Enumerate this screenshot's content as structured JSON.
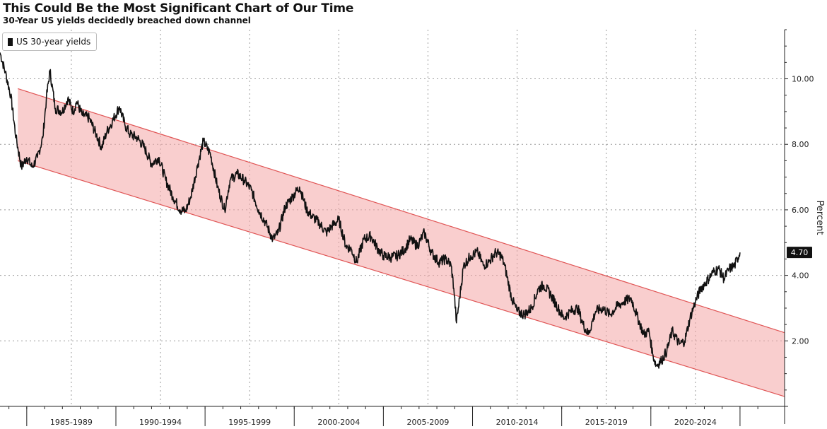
{
  "chart_data": {
    "type": "line",
    "title": "This Could Be the Most Significant Chart of Our Time",
    "subtitle": "30-Year US yields decidedly breached down channel",
    "ylabel": "Percent",
    "xlabel": "",
    "ylim": [
      0,
      11.5
    ],
    "xlim": [
      1983.5,
      2027.5
    ],
    "yticks": [
      2,
      4,
      6,
      8,
      10
    ],
    "ytick_labels": [
      "2.00",
      "4.00",
      "6.00",
      "8.00",
      "10.00"
    ],
    "y_axis_position": "right",
    "grid": true,
    "legend": {
      "placement": "top-left",
      "entries": [
        "US 30-year yields"
      ]
    },
    "categories": [
      "1985-1989",
      "1990-1994",
      "1995-1999",
      "2000-2004",
      "2005-2009",
      "2010-2014",
      "2015-2019",
      "2020-2024"
    ],
    "category_bounds": [
      [
        1985,
        1990
      ],
      [
        1990,
        1995
      ],
      [
        1995,
        2000
      ],
      [
        2000,
        2005
      ],
      [
        2005,
        2010
      ],
      [
        2010,
        2015
      ],
      [
        2015,
        2020
      ],
      [
        2020,
        2025
      ]
    ],
    "last_value_label": "4.70",
    "channel": {
      "color": "#f4a6a6",
      "edge_color": "#e05555",
      "upper": [
        [
          1984.5,
          9.7
        ],
        [
          2027.5,
          2.25
        ]
      ],
      "lower": [
        [
          1984.5,
          7.5
        ],
        [
          2027.5,
          0.3
        ]
      ]
    },
    "series": [
      {
        "name": "US 30-year yields",
        "color": "#111111",
        "x": [
          1983.5,
          1983.8,
          1984.1,
          1984.4,
          1984.7,
          1985.0,
          1985.3,
          1985.6,
          1985.9,
          1986.1,
          1986.3,
          1986.6,
          1987.0,
          1987.3,
          1987.6,
          1987.8,
          1988.1,
          1988.5,
          1988.9,
          1989.2,
          1989.5,
          1989.8,
          1990.2,
          1990.5,
          1990.8,
          1991.2,
          1991.6,
          1992.0,
          1992.4,
          1992.8,
          1993.2,
          1993.6,
          1993.9,
          1994.2,
          1994.6,
          1994.9,
          1995.3,
          1995.7,
          1996.1,
          1996.4,
          1996.8,
          1997.2,
          1997.6,
          1998.0,
          1998.4,
          1998.8,
          1999.1,
          1999.5,
          1999.9,
          2000.3,
          2000.7,
          2001.0,
          2001.4,
          2001.8,
          2002.1,
          2002.5,
          2002.9,
          2003.2,
          2003.5,
          2003.9,
          2004.3,
          2004.7,
          2005.0,
          2005.4,
          2005.8,
          2006.2,
          2006.5,
          2006.9,
          2007.3,
          2007.7,
          2008.1,
          2008.5,
          2008.8,
          2008.95,
          2009.1,
          2009.5,
          2009.9,
          2010.3,
          2010.6,
          2010.9,
          2011.3,
          2011.6,
          2011.8,
          2012.2,
          2012.5,
          2012.9,
          2013.3,
          2013.7,
          2014.0,
          2014.4,
          2014.8,
          2015.1,
          2015.5,
          2015.9,
          2016.2,
          2016.5,
          2016.9,
          2017.3,
          2017.7,
          2018.1,
          2018.5,
          2018.9,
          2019.2,
          2019.6,
          2019.9,
          2020.1,
          2020.3,
          2020.6,
          2020.9,
          2021.2,
          2021.6,
          2021.9,
          2022.2,
          2022.5,
          2022.8,
          2023.1,
          2023.5,
          2023.8,
          2024.1,
          2024.4,
          2024.7,
          2025.0
        ],
        "values": [
          10.8,
          10.2,
          9.5,
          8.2,
          7.3,
          7.6,
          7.3,
          7.6,
          8.2,
          9.4,
          10.25,
          9.1,
          9.0,
          9.4,
          9.0,
          9.3,
          8.9,
          8.8,
          8.3,
          7.9,
          8.4,
          8.7,
          9.15,
          8.6,
          8.3,
          8.2,
          7.9,
          7.4,
          7.6,
          6.9,
          6.4,
          6.0,
          5.95,
          6.4,
          7.4,
          8.1,
          7.7,
          6.7,
          6.0,
          6.9,
          7.1,
          6.9,
          6.6,
          6.0,
          5.6,
          5.1,
          5.3,
          6.1,
          6.4,
          6.7,
          6.0,
          5.8,
          5.6,
          5.3,
          5.5,
          5.7,
          4.9,
          4.8,
          4.4,
          5.1,
          5.2,
          4.8,
          4.6,
          4.55,
          4.6,
          4.8,
          5.1,
          4.9,
          5.3,
          4.7,
          4.4,
          4.5,
          4.3,
          3.6,
          2.55,
          4.3,
          4.6,
          4.7,
          4.3,
          4.4,
          4.7,
          4.6,
          4.3,
          3.3,
          2.9,
          2.8,
          3.0,
          3.6,
          3.7,
          3.4,
          3.0,
          2.7,
          2.9,
          3.0,
          2.5,
          2.2,
          2.9,
          3.0,
          2.8,
          3.05,
          3.2,
          3.3,
          2.8,
          2.2,
          2.3,
          1.6,
          1.25,
          1.4,
          1.7,
          2.3,
          1.9,
          2.0,
          2.7,
          3.2,
          3.6,
          3.8,
          4.1,
          4.2,
          3.9,
          4.2,
          4.3,
          4.7
        ]
      }
    ]
  }
}
